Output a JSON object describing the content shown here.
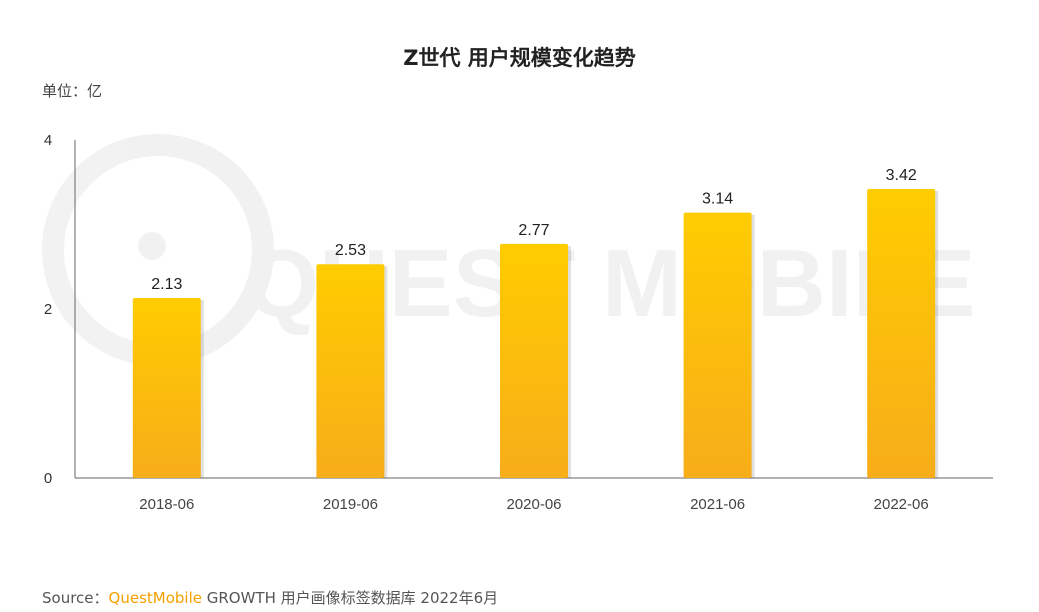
{
  "chart_data": {
    "type": "bar",
    "title": "Z世代 用户规模变化趋势",
    "unit": "单位：亿",
    "categories": [
      "2018-06",
      "2019-06",
      "2020-06",
      "2021-06",
      "2022-06"
    ],
    "values": [
      2.13,
      2.53,
      2.77,
      3.14,
      3.42
    ],
    "yticks": [
      0,
      2,
      4
    ],
    "ylim": [
      0,
      4
    ],
    "grid": false,
    "legend": "none",
    "bar_color_top": "#ffcc00",
    "bar_color_bottom": "#f7ad19",
    "watermark": "QUEST MOBILE"
  },
  "source": {
    "prefix": "Source：",
    "brand": "QuestMobile",
    "text": " GROWTH 用户画像标签数据库 2022年6月"
  }
}
